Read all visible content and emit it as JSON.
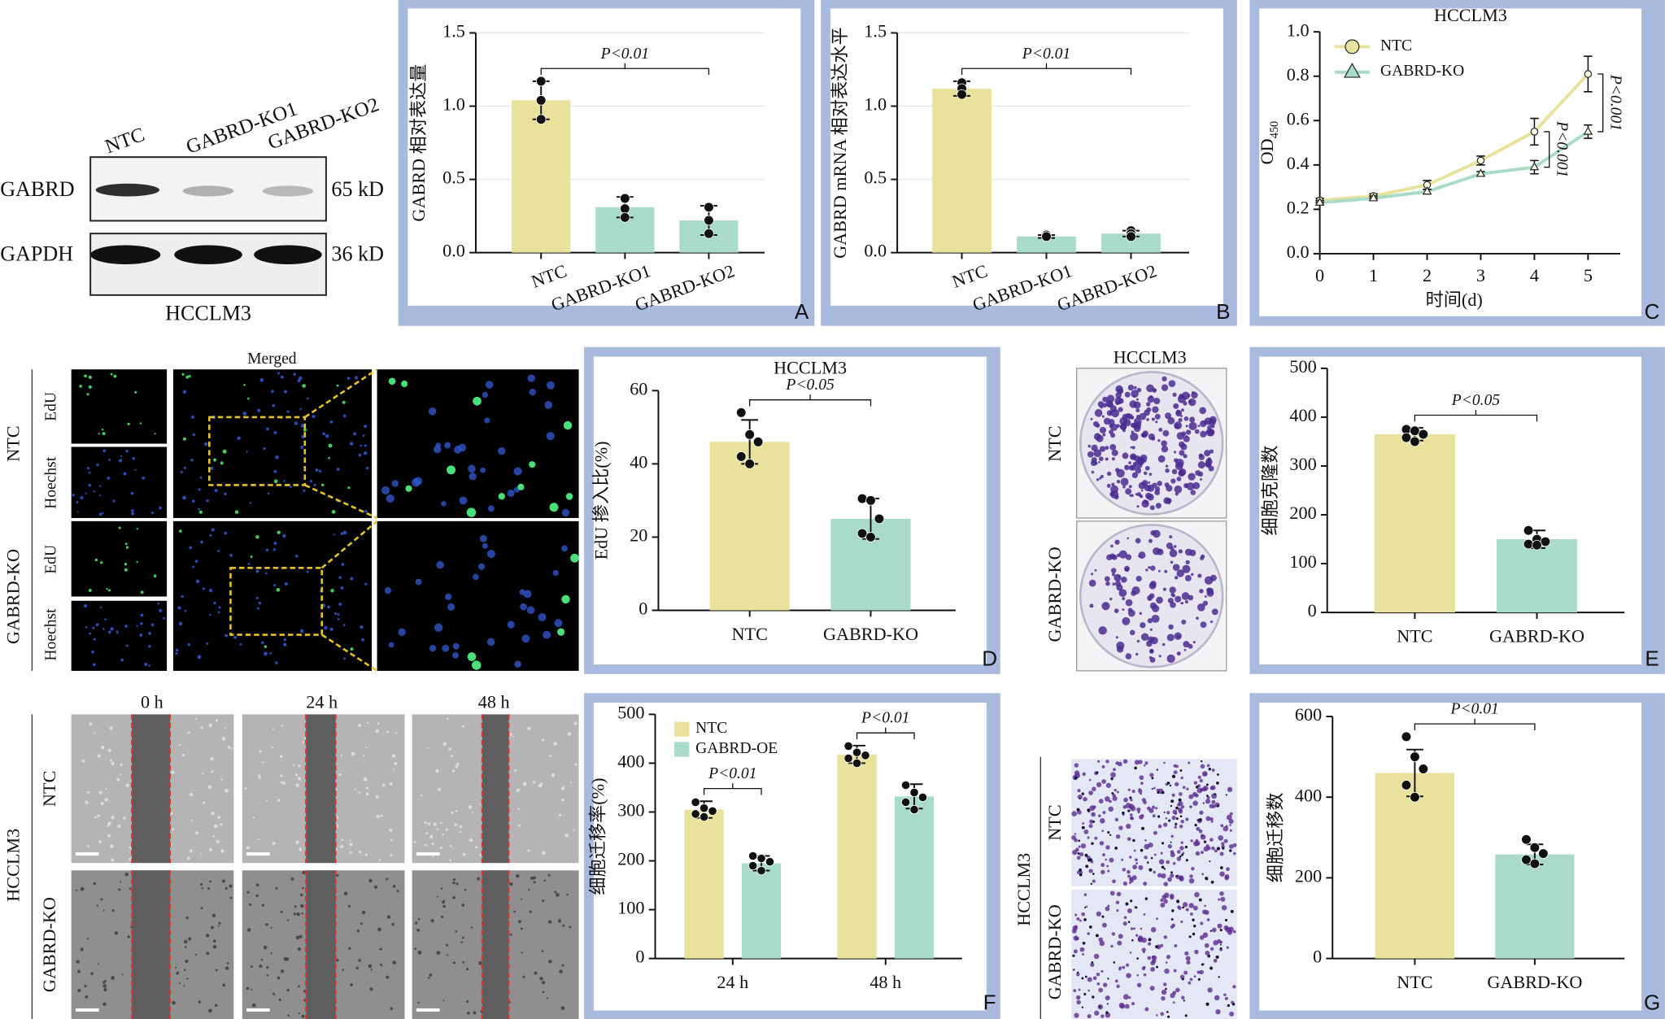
{
  "figure": {
    "western_blot": {
      "lanes": [
        "NTC",
        "GABRD-KO1",
        "GABRD-KO2"
      ],
      "rows": [
        "GABRD",
        "GAPDH"
      ],
      "sizes": [
        "65 kD",
        "36 kD"
      ],
      "cell_line": "HCCLM3"
    },
    "edu_images": {
      "title": "Merged",
      "groups": [
        "NTC",
        "GABRD-KO"
      ],
      "stains": [
        "EdU",
        "Hoechst",
        "EdU",
        "Hoechst"
      ]
    },
    "colony_images": {
      "cell_line": "HCCLM3",
      "groups": [
        "NTC",
        "GABRD-KO"
      ]
    },
    "wound_images": {
      "times": [
        "0 h",
        "24 h",
        "48 h"
      ],
      "cell_line": "HCCLM3",
      "groups": [
        "NTC",
        "GABRD-KO"
      ]
    },
    "transwell_images": {
      "cell_line": "HCCLM3",
      "groups": [
        "NTC",
        "GABRD-KO"
      ]
    }
  },
  "chart_data": [
    {
      "type": "bar",
      "panel_label": "A",
      "y_label": "GABRD 相对表达量",
      "categories": [
        "NTC",
        "GABRD-KO1",
        "GABRD-KO2"
      ],
      "values": [
        1.04,
        0.31,
        0.22
      ],
      "errors": [
        0.13,
        0.07,
        0.1
      ],
      "points": [
        [
          1.17,
          1.04,
          0.91
        ],
        [
          0.37,
          0.3,
          0.24
        ],
        [
          0.31,
          0.22,
          0.13
        ]
      ],
      "colors": [
        "#e8e29c",
        "#a9dcc8",
        "#a9dcc8"
      ],
      "ylim": [
        0,
        1.5
      ],
      "yticks": [
        {
          "value": 0,
          "label": "0.0"
        },
        0.5,
        {
          "value": 1,
          "label": "1.0"
        },
        1.5
      ],
      "grid": true,
      "annotations": [
        "P<0.01"
      ]
    },
    {
      "type": "bar",
      "panel_label": "B",
      "y_label": "GABRD mRNA 相对表达水平",
      "categories": [
        "NTC",
        "GABRD-KO1",
        "GABRD-KO2"
      ],
      "values": [
        1.12,
        0.11,
        0.13
      ],
      "errors": [
        0.05,
        0.01,
        0.02
      ],
      "points": [
        [
          1.16,
          1.12,
          1.08
        ],
        [
          0.12,
          0.11,
          0.11
        ],
        [
          0.15,
          0.13,
          0.11
        ]
      ],
      "colors": [
        "#e8e29c",
        "#a9dcc8",
        "#a9dcc8"
      ],
      "ylim": [
        0,
        1.5
      ],
      "yticks": [
        {
          "value": 0,
          "label": "0.0"
        },
        0.5,
        {
          "value": 1,
          "label": "1.0"
        },
        1.5
      ],
      "grid": true,
      "annotations": [
        "P<0.01"
      ]
    },
    {
      "type": "line",
      "panel_label": "C",
      "title": "HCCLM3",
      "y_label": "OD",
      "y_label_subscript": "450",
      "x_label": "时间(d)",
      "x": [
        0,
        1,
        2,
        3,
        4,
        5
      ],
      "series": [
        {
          "name": "NTC",
          "color": "#e8e29c",
          "marker": "circle",
          "values": [
            0.24,
            0.26,
            0.31,
            0.42,
            0.55,
            0.81
          ],
          "errors": [
            0.01,
            0.01,
            0.02,
            0.02,
            0.06,
            0.08
          ]
        },
        {
          "name": "GABRD-KO",
          "color": "#a9dcc8",
          "marker": "triangle",
          "values": [
            0.23,
            0.25,
            0.28,
            0.36,
            0.39,
            0.55
          ],
          "errors": [
            0.01,
            0.01,
            0.01,
            0.01,
            0.03,
            0.03
          ]
        }
      ],
      "xlim": [
        0,
        5.6
      ],
      "xticks": [
        0,
        1,
        2,
        3,
        4,
        5
      ],
      "ylim": [
        0,
        1
      ],
      "yticks": [
        {
          "value": 0,
          "label": "0.0"
        },
        0.2,
        0.4,
        0.6,
        0.8,
        {
          "value": 1,
          "label": "1.0"
        }
      ],
      "grid": false,
      "legend": "upper left",
      "annotations": [
        "P<0.001",
        "P<0.001"
      ]
    },
    {
      "type": "bar",
      "panel_label": "D",
      "title": "HCCLM3",
      "y_label": "EdU 掺入比(%)",
      "categories": [
        "NTC",
        "GABRD-KO"
      ],
      "values": [
        46,
        25
      ],
      "errors": [
        6,
        5.5
      ],
      "points": [
        [
          54,
          48,
          46,
          42,
          40
        ],
        [
          30.5,
          30,
          25,
          21,
          20
        ]
      ],
      "colors": [
        "#e8e29c",
        "#a9dcc8"
      ],
      "ylim": [
        0,
        60
      ],
      "yticks": [
        0,
        20,
        40,
        60
      ],
      "grid": false,
      "annotations": [
        "P<0.05"
      ]
    },
    {
      "type": "bar",
      "panel_label": "E",
      "y_label": "细胞克隆数",
      "categories": [
        "NTC",
        "GABRD-KO"
      ],
      "values": [
        365,
        150
      ],
      "errors": [
        13,
        18
      ],
      "points": [
        [
          375,
          372,
          365,
          358,
          350
        ],
        [
          168,
          150,
          145,
          140,
          138
        ]
      ],
      "colors": [
        "#e8e29c",
        "#a9dcc8"
      ],
      "ylim": [
        0,
        500
      ],
      "yticks": [
        0,
        100,
        200,
        300,
        400,
        500
      ],
      "grid": false,
      "annotations": [
        "P<0.05"
      ]
    },
    {
      "type": "grouped_bar",
      "panel_label": "F",
      "y_label": "细胞迁移率(%)",
      "categories": [
        "24 h",
        "48 h"
      ],
      "series": [
        {
          "name": "NTC",
          "color": "#e8e29c",
          "values": [
            305,
            418
          ],
          "errors": [
            17,
            18
          ],
          "points": [
            [
              320,
              308,
              302,
              296,
              290
            ],
            [
              435,
              422,
              416,
              410,
              400
            ]
          ]
        },
        {
          "name": "GABRD-OE",
          "color": "#a9dcc8",
          "values": [
            195,
            332
          ],
          "errors": [
            15,
            25
          ],
          "points": [
            [
              210,
              205,
              198,
              190,
              180
            ],
            [
              355,
              340,
              330,
              320,
              305
            ]
          ]
        }
      ],
      "ylim": [
        0,
        500
      ],
      "yticks": [
        0,
        100,
        200,
        300,
        400,
        500
      ],
      "grid": false,
      "legend": "upper left",
      "annotations": [
        "P<0.01",
        "P<0.01"
      ]
    },
    {
      "type": "bar",
      "panel_label": "G",
      "y_label": "细胞迁移数",
      "categories": [
        "NTC",
        "GABRD-KO"
      ],
      "values": [
        460,
        258
      ],
      "errors": [
        58,
        25
      ],
      "points": [
        [
          550,
          500,
          470,
          430,
          400
        ],
        [
          295,
          275,
          260,
          245,
          235
        ]
      ],
      "colors": [
        "#e8e29c",
        "#a9dcc8"
      ],
      "ylim": [
        0,
        600
      ],
      "yticks": [
        0,
        200,
        400,
        600
      ],
      "grid": false,
      "annotations": [
        "P<0.01"
      ]
    }
  ]
}
